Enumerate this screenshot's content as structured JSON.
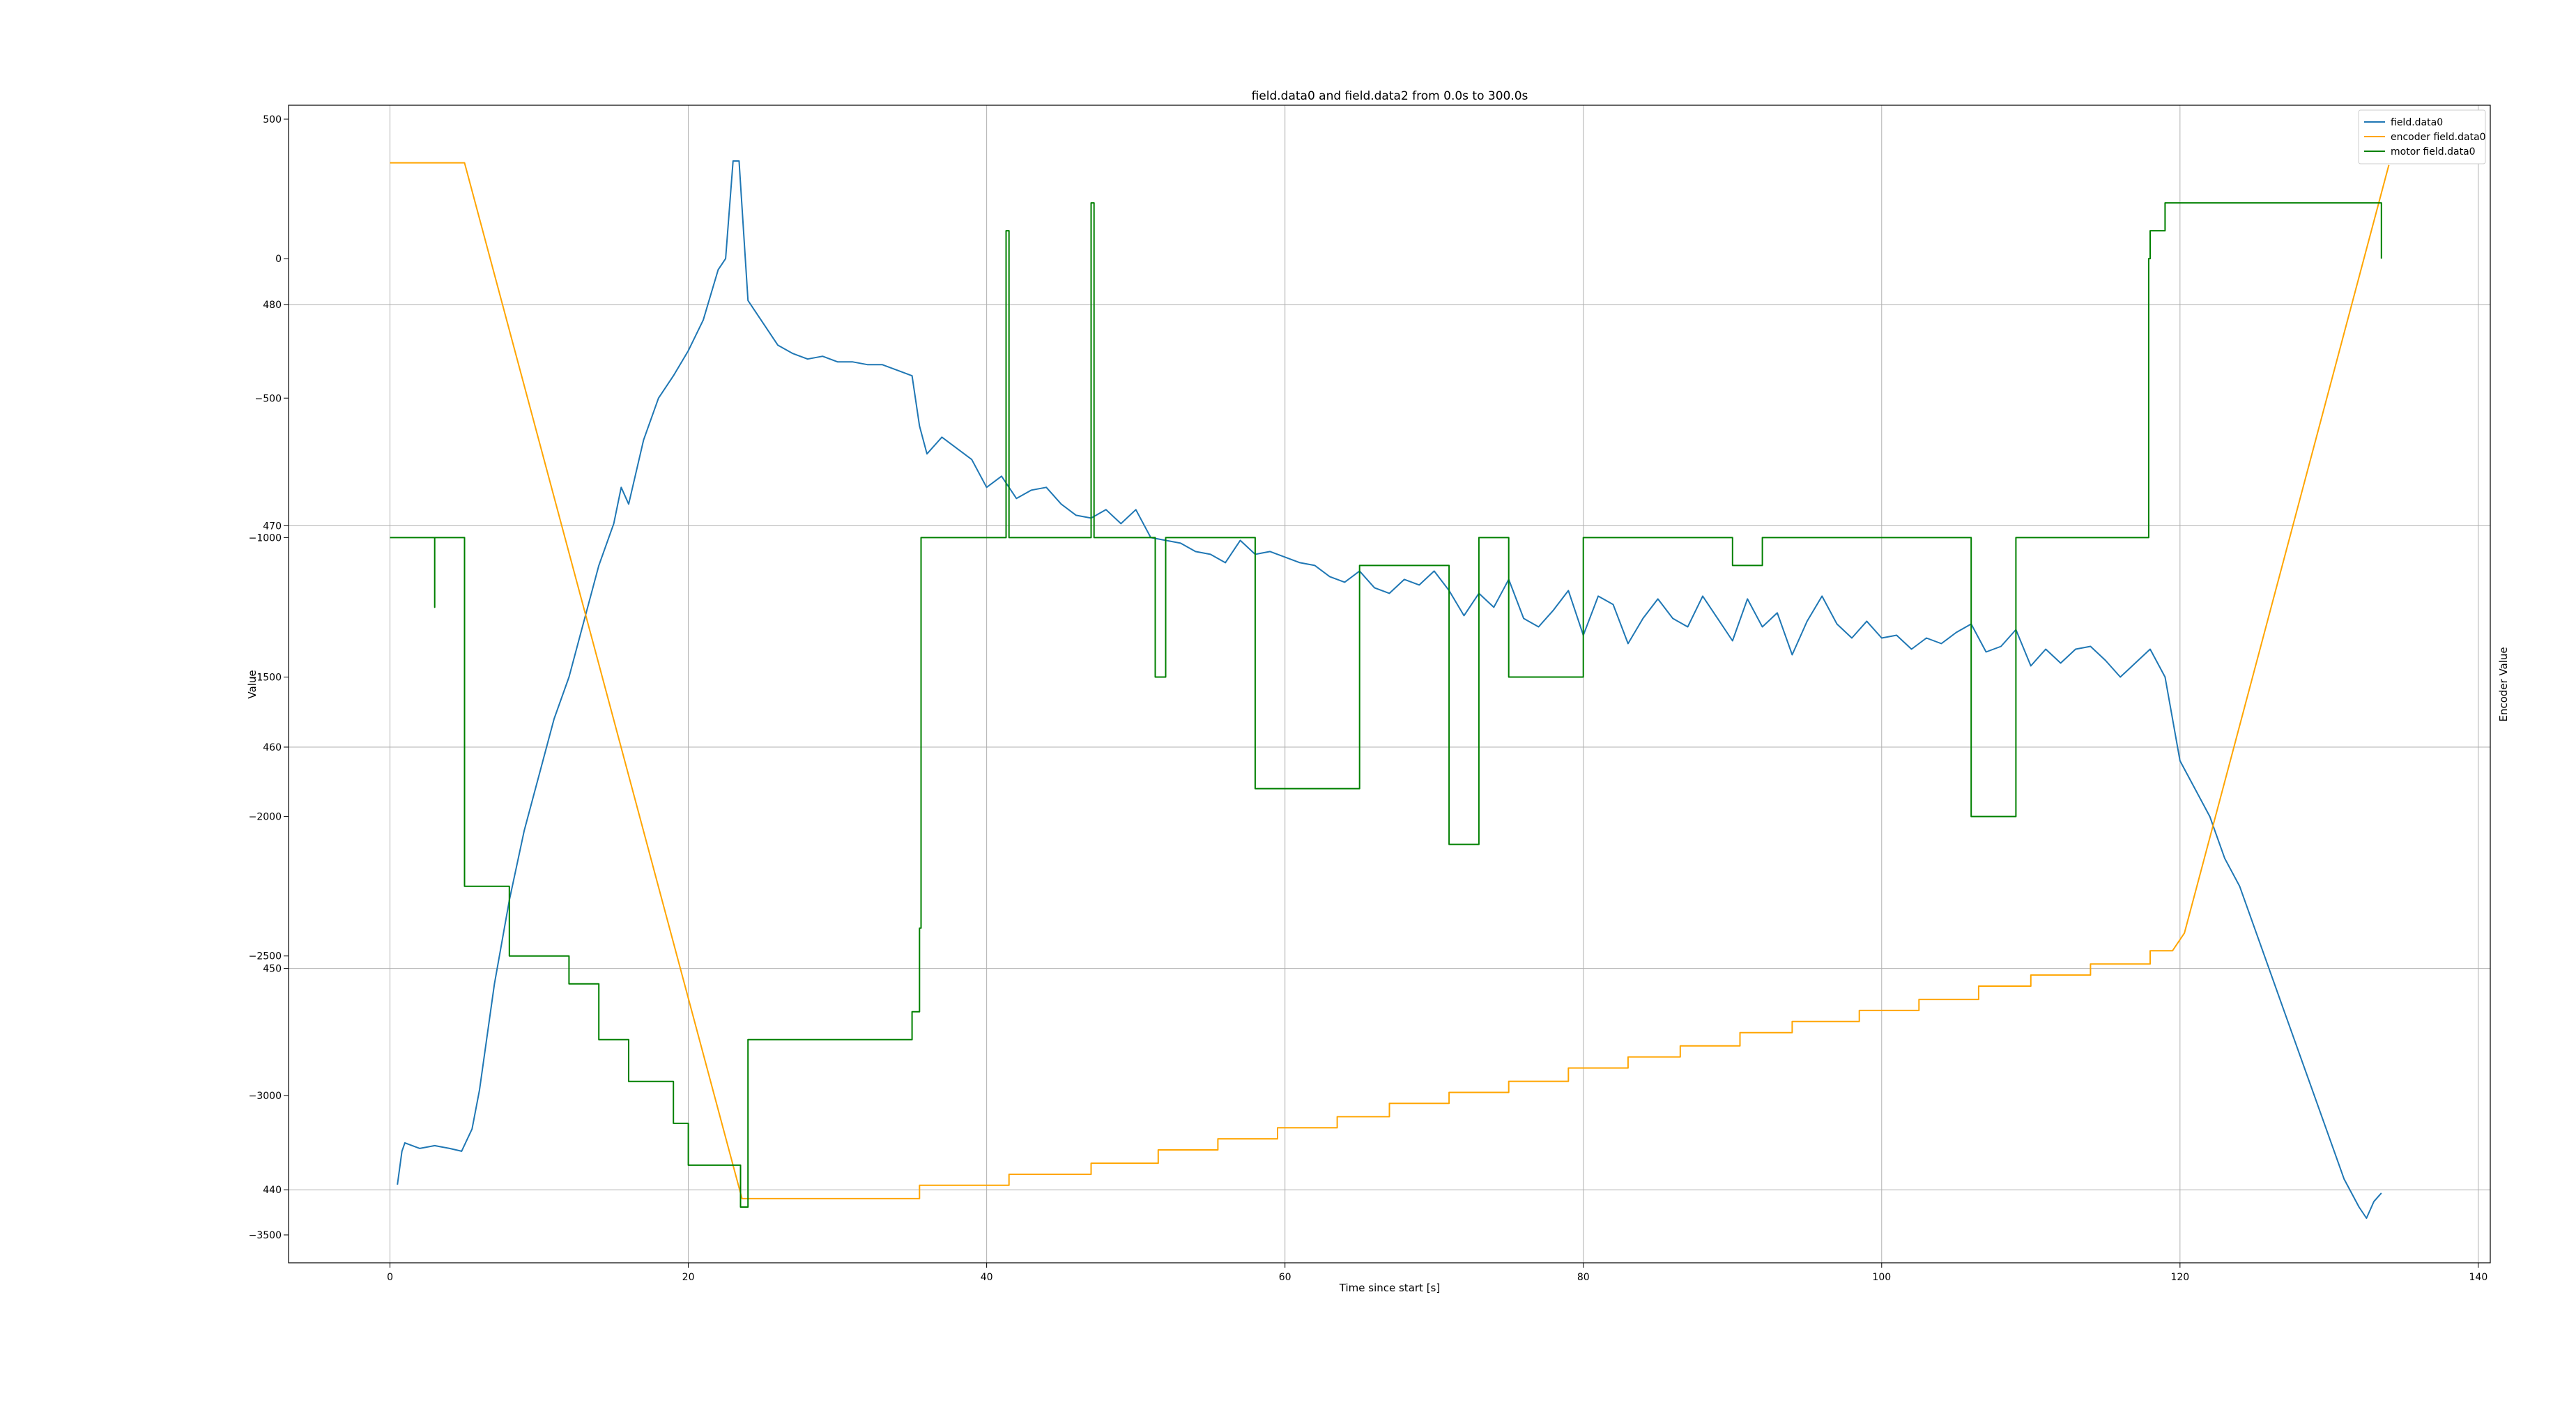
{
  "chart_data": {
    "type": "line",
    "title": "field.data0 and field.data2 from 0.0s to 300.0s",
    "xlabel": "Time since start [s]",
    "ylabel": "Value",
    "ylabel_right": "Encoder Value",
    "xlim": [
      -6.8,
      140.8
    ],
    "ylim_left": [
      -3600,
      550
    ],
    "ylim_right": [
      436.7,
      489.0
    ],
    "x_ticks": [
      0,
      20,
      40,
      60,
      80,
      100,
      120,
      140
    ],
    "y_ticks_left": [
      500,
      0,
      -500,
      -1000,
      -1500,
      -2000,
      -2500,
      -3000,
      -3500
    ],
    "y_ticks_right": [
      480,
      470,
      460,
      450,
      440
    ],
    "grid": true,
    "legend_position": "upper right",
    "series": [
      {
        "name": "field.data0",
        "axis": "left",
        "color": "#1f77b4",
        "x": [
          0.5,
          0.8,
          1,
          2,
          3,
          4,
          4.8,
          5.5,
          6,
          7,
          8,
          9,
          10,
          11,
          12,
          13,
          14,
          15,
          15.5,
          16,
          17,
          18,
          19,
          20,
          21,
          22,
          22.5,
          23,
          23.4,
          24,
          25,
          26,
          27,
          28,
          29,
          30,
          31,
          32,
          33,
          34,
          35,
          35.5,
          36,
          37,
          38,
          39,
          40,
          41,
          42,
          43,
          44,
          45,
          46,
          47,
          48,
          49,
          50,
          51,
          52,
          53,
          54,
          55,
          56,
          57,
          58,
          59,
          60,
          61,
          62,
          63,
          64,
          65,
          66,
          67,
          68,
          69,
          70,
          71,
          72,
          73,
          74,
          75,
          76,
          77,
          78,
          79,
          80,
          81,
          82,
          83,
          84,
          85,
          86,
          87,
          88,
          89,
          90,
          91,
          92,
          93,
          94,
          95,
          96,
          97,
          98,
          99,
          100,
          101,
          102,
          103,
          104,
          105,
          106,
          107,
          108,
          109,
          110,
          111,
          112,
          113,
          114,
          115,
          116,
          117,
          118,
          119,
          120,
          121,
          122,
          123,
          124,
          125,
          126,
          127,
          128,
          129,
          130,
          131,
          132,
          132.5,
          133,
          133.5
        ],
        "y": [
          -3320,
          -3200,
          -3170,
          -3190,
          -3180,
          -3190,
          -3200,
          -3120,
          -2980,
          -2600,
          -2300,
          -2050,
          -1850,
          -1650,
          -1500,
          -1300,
          -1100,
          -950,
          -820,
          -880,
          -650,
          -500,
          -420,
          -330,
          -220,
          -40,
          0,
          350,
          350,
          -150,
          -230,
          -310,
          -340,
          -360,
          -350,
          -370,
          -370,
          -380,
          -380,
          -400,
          -420,
          -600,
          -700,
          -640,
          -680,
          -720,
          -820,
          -780,
          -860,
          -830,
          -820,
          -880,
          -920,
          -930,
          -900,
          -950,
          -900,
          -1000,
          -1010,
          -1020,
          -1050,
          -1060,
          -1090,
          -1010,
          -1060,
          -1050,
          -1070,
          -1090,
          -1100,
          -1140,
          -1160,
          -1120,
          -1180,
          -1200,
          -1150,
          -1170,
          -1120,
          -1190,
          -1280,
          -1200,
          -1250,
          -1150,
          -1290,
          -1320,
          -1260,
          -1190,
          -1350,
          -1210,
          -1240,
          -1380,
          -1290,
          -1220,
          -1290,
          -1320,
          -1210,
          -1290,
          -1370,
          -1220,
          -1320,
          -1270,
          -1420,
          -1300,
          -1210,
          -1310,
          -1360,
          -1300,
          -1360,
          -1350,
          -1400,
          -1360,
          -1380,
          -1340,
          -1310,
          -1410,
          -1390,
          -1330,
          -1460,
          -1400,
          -1450,
          -1400,
          -1390,
          -1440,
          -1500,
          -1450,
          -1400,
          -1500,
          -1800,
          -1900,
          -2000,
          -2150,
          -2250,
          -2400,
          -2550,
          -2700,
          -2850,
          -3000,
          -3150,
          -3300,
          -3400,
          -3440,
          -3380,
          -3350
        ]
      },
      {
        "name": "encoder field.data0",
        "axis": "right",
        "color": "#ffa500",
        "x": [
          0,
          5,
          23.6,
          35.5,
          35.5,
          41.5,
          41.5,
          47,
          47,
          51.5,
          51.5,
          55.5,
          55.5,
          59.5,
          59.5,
          63.5,
          63.5,
          67,
          67,
          71,
          71,
          75,
          75,
          79,
          79,
          83,
          83,
          86.5,
          86.5,
          90.5,
          90.5,
          94,
          94,
          98.5,
          98.5,
          102.5,
          102.5,
          106.5,
          106.5,
          110,
          110,
          114,
          114,
          118,
          118,
          119.5,
          120.3,
          134
        ],
        "y": [
          486.4,
          486.4,
          439.6,
          439.6,
          440.2,
          440.2,
          440.7,
          440.7,
          441.2,
          441.2,
          441.8,
          441.8,
          442.3,
          442.3,
          442.8,
          442.8,
          443.3,
          443.3,
          443.9,
          443.9,
          444.4,
          444.4,
          444.9,
          444.9,
          445.5,
          445.5,
          446.0,
          446.0,
          446.5,
          446.5,
          447.1,
          447.1,
          447.6,
          447.6,
          448.1,
          448.1,
          448.6,
          448.6,
          449.2,
          449.2,
          449.7,
          449.7,
          450.2,
          450.2,
          450.8,
          450.8,
          451.6,
          486.3
        ]
      },
      {
        "name": "motor field.data0",
        "axis": "left",
        "color": "#008000",
        "x": [
          0,
          3,
          3,
          3,
          3,
          5,
          5,
          5,
          5,
          8,
          8,
          12,
          12,
          14,
          14,
          16,
          16,
          19,
          19,
          20,
          20,
          23.5,
          23.5,
          24,
          24,
          35,
          35,
          35.5,
          35.5,
          35.6,
          35.6,
          36,
          36,
          41.3,
          41.3,
          41.5,
          41.5,
          47,
          47,
          47.2,
          47.2,
          51.3,
          51.3,
          52,
          52,
          58,
          58,
          65,
          65,
          71,
          71,
          73,
          73,
          75,
          75,
          80,
          80,
          90,
          90,
          92,
          92,
          106,
          106,
          109,
          109,
          109,
          109,
          117.9,
          117.9,
          118,
          118,
          119,
          119,
          133.5,
          133.5
        ],
        "y": [
          -1000,
          -1000,
          -1250,
          -1250,
          -1000,
          -1000,
          -2100,
          -2100,
          -2250,
          -2250,
          -2500,
          -2500,
          -2600,
          -2600,
          -2800,
          -2800,
          -2950,
          -2950,
          -3100,
          -3100,
          -3250,
          -3250,
          -3400,
          -3400,
          -2800,
          -2800,
          -2700,
          -2700,
          -2400,
          -2400,
          -1000,
          -1000,
          -1000,
          -1000,
          100,
          100,
          -1000,
          -1000,
          200,
          200,
          -1000,
          -1000,
          -1500,
          -1500,
          -1000,
          -1000,
          -1900,
          -1900,
          -1100,
          -1100,
          -2100,
          -2100,
          -1000,
          -1000,
          -1500,
          -1500,
          -1000,
          -1000,
          -1100,
          -1100,
          -1000,
          -1000,
          -2000,
          -2000,
          -1000,
          -1000,
          -1000,
          -1000,
          0,
          0,
          100,
          100,
          200,
          200,
          0
        ]
      }
    ]
  }
}
